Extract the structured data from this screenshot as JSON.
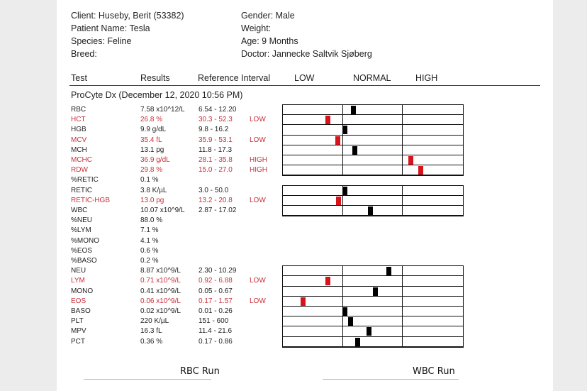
{
  "header": {
    "client": "Client: Huseby, Berit (53382)",
    "gender": "Gender: Male",
    "patient": "Patient Name: Tesla",
    "weight": "Weight:",
    "species": "Species: Feline",
    "age": "Age: 9 Months",
    "breed": "Breed:",
    "doctor": "Doctor: Jannecke Saltvik Sjøberg"
  },
  "columns": {
    "test": "Test",
    "results": "Results",
    "reference": "Reference Interval",
    "low": "LOW",
    "normal": "NORMAL",
    "high": "HIGH"
  },
  "section_title": "ProCyte Dx (December 12, 2020 10:56 PM)",
  "rows": [
    {
      "test": "RBC",
      "result": "7.58 x10^12/L",
      "ref": "6.54 - 12.20",
      "flag": "",
      "level": 0.39
    },
    {
      "test": "HCT",
      "result": "26.8 %",
      "ref": "30.3 - 52.3",
      "flag": "LOW",
      "level": 0.25
    },
    {
      "test": "HGB",
      "result": "9.9 g/dL",
      "ref": "9.8 - 16.2",
      "flag": "",
      "level": 0.345
    },
    {
      "test": "MCV",
      "result": "35.4 fL",
      "ref": "35.9 - 53.1",
      "flag": "LOW",
      "level": 0.305
    },
    {
      "test": "MCH",
      "result": "13.1 pg",
      "ref": "11.8 - 17.3",
      "flag": "",
      "level": 0.4
    },
    {
      "test": "MCHC",
      "result": "36.9 g/dL",
      "ref": "28.1 - 35.8",
      "flag": "HIGH",
      "level": 0.71
    },
    {
      "test": "RDW",
      "result": "29.8 %",
      "ref": "15.0 - 27.0",
      "flag": "HIGH",
      "level": 0.765
    },
    {
      "test": "%RETIC",
      "result": "0.1 %",
      "ref": "",
      "flag": "",
      "level": null
    },
    {
      "test": "RETIC",
      "result": "3.8 K/µL",
      "ref": "3.0 - 50.0",
      "flag": "",
      "level": 0.345
    },
    {
      "test": "RETIC-HGB",
      "result": "13.0 pg",
      "ref": "13.2 - 20.8",
      "flag": "LOW",
      "level": 0.31
    },
    {
      "test": "WBC",
      "result": "10.07 x10^9/L",
      "ref": "2.87 - 17.02",
      "flag": "",
      "level": 0.485
    },
    {
      "test": "%NEU",
      "result": "88.0 %",
      "ref": "",
      "flag": "",
      "level": null
    },
    {
      "test": "%LYM",
      "result": "7.1 %",
      "ref": "",
      "flag": "",
      "level": null
    },
    {
      "test": "%MONO",
      "result": "4.1 %",
      "ref": "",
      "flag": "",
      "level": null
    },
    {
      "test": "%EOS",
      "result": "0.6 %",
      "ref": "",
      "flag": "",
      "level": null
    },
    {
      "test": "%BASO",
      "result": "0.2 %",
      "ref": "",
      "flag": "",
      "level": null
    },
    {
      "test": "NEU",
      "result": "8.87 x10^9/L",
      "ref": "2.30 - 10.29",
      "flag": "",
      "level": 0.59
    },
    {
      "test": "LYM",
      "result": "0.71 x10^9/L",
      "ref": "0.92 - 6.88",
      "flag": "LOW",
      "level": 0.25
    },
    {
      "test": "MONO",
      "result": "0.41 x10^9/L",
      "ref": "0.05 - 0.67",
      "flag": "",
      "level": 0.515
    },
    {
      "test": "EOS",
      "result": "0.06 x10^9/L",
      "ref": "0.17 - 1.57",
      "flag": "LOW",
      "level": 0.11
    },
    {
      "test": "BASO",
      "result": "0.02 x10^9/L",
      "ref": "0.01 - 0.26",
      "flag": "",
      "level": 0.345
    },
    {
      "test": "PLT",
      "result": "220 K/µL",
      "ref": "151 - 600",
      "flag": "",
      "level": 0.375
    },
    {
      "test": "MPV",
      "result": "16.3 fL",
      "ref": "11.4 - 21.6",
      "flag": "",
      "level": 0.48
    },
    {
      "test": "PCT",
      "result": "0.36 %",
      "ref": "0.17 - 0.86",
      "flag": "",
      "level": 0.415
    }
  ],
  "footer": {
    "rbc_run": "RBC Run",
    "wbc_run": "WBC Run"
  },
  "colors": {
    "abnormal": "#c8303a",
    "marker_abnormal": "#d7141c",
    "marker_normal": "#000000"
  }
}
